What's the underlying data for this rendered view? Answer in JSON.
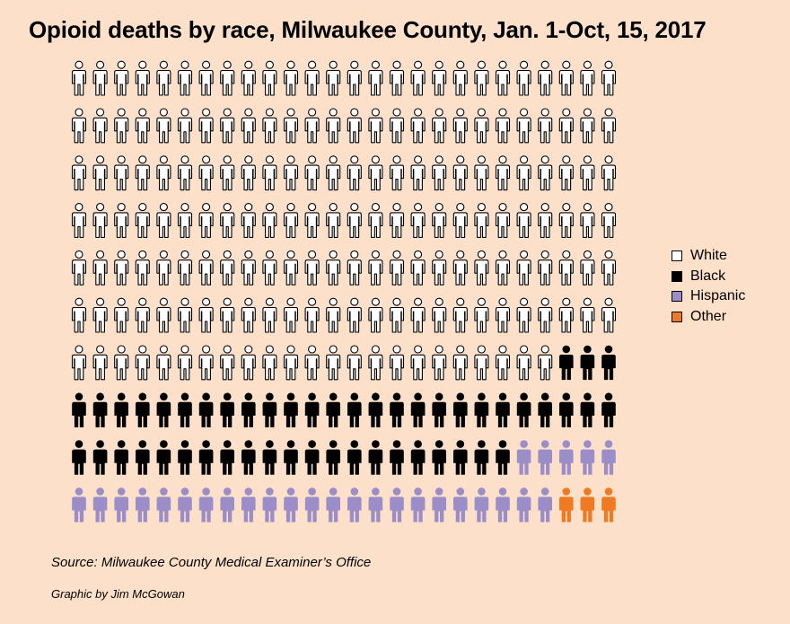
{
  "title": "Opioid deaths by race, Milwaukee County, Jan. 1-Oct, 15, 2017",
  "chart_data": {
    "type": "isotype",
    "title": "Opioid deaths by race, Milwaukee County, Jan. 1-Oct, 15, 2017",
    "columns": 26,
    "rows": 10,
    "categories": [
      "White",
      "Black",
      "Hispanic",
      "Other"
    ],
    "values": [
      179,
      50,
      28,
      3
    ],
    "colors": [
      "#ffffff",
      "#000000",
      "#9b8ec8",
      "#f07a22"
    ],
    "legend_position": "right"
  },
  "legend": [
    {
      "label": "White",
      "color": "#ffffff"
    },
    {
      "label": "Black",
      "color": "#000000"
    },
    {
      "label": "Hispanic",
      "color": "#9b8ec8"
    },
    {
      "label": "Other",
      "color": "#f07a22"
    }
  ],
  "source": "Source: Milwaukee County Medical Examiner’s Office",
  "credit": "Graphic by Jim McGowan"
}
